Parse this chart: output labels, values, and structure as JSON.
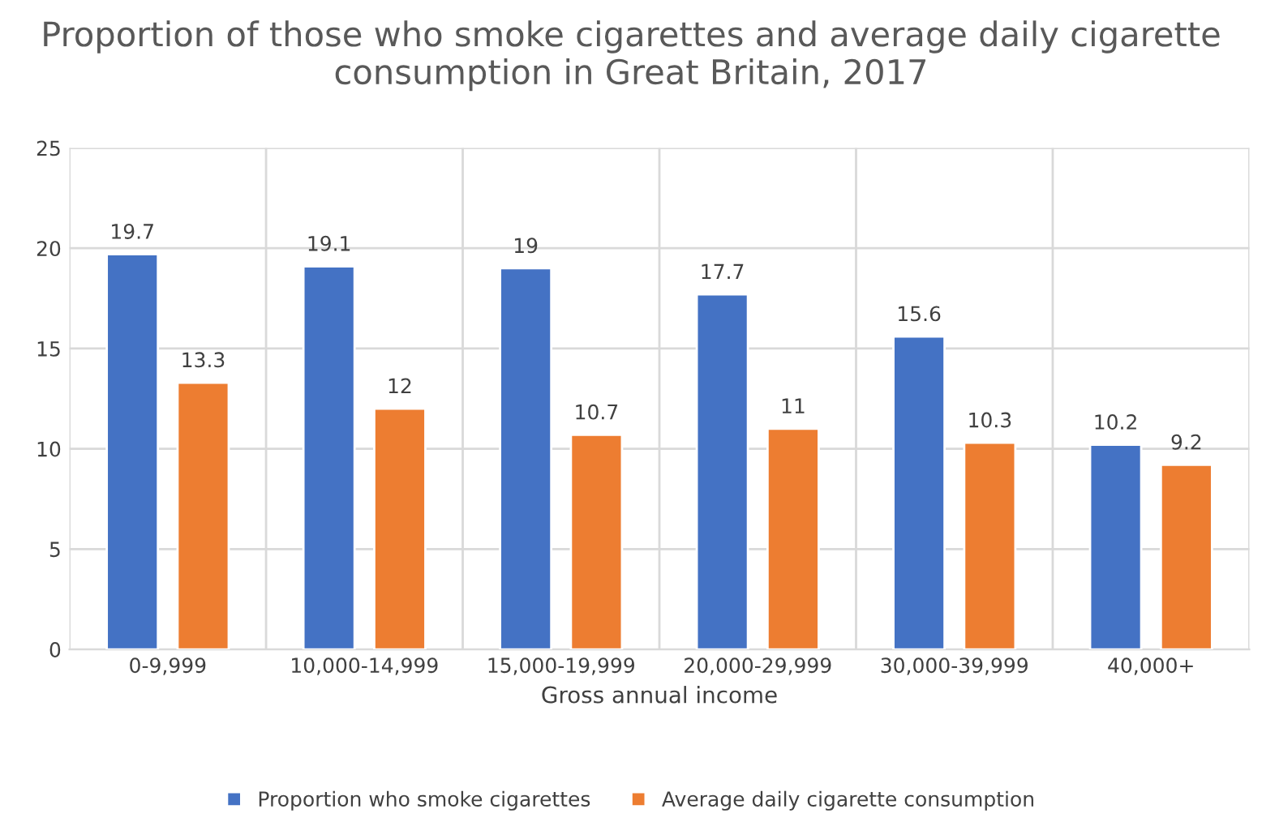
{
  "chart_data": {
    "type": "bar",
    "title": "Proportion of those who smoke cigarettes and average daily cigarette consumption in Great Britain, 2017",
    "xlabel": "Gross annual income",
    "categories": [
      "0-9,999",
      "10,000-14,999",
      "15,000-19,999",
      "20,000-29,999",
      "30,000-39,999",
      "40,000+"
    ],
    "series": [
      {
        "name": "Proportion who smoke cigarettes",
        "color": "#4472c4",
        "values": [
          19.7,
          19.1,
          19,
          17.7,
          15.6,
          10.2
        ]
      },
      {
        "name": "Average daily cigarette consumption",
        "color": "#ed7d31",
        "values": [
          13.3,
          12,
          10.7,
          11,
          10.3,
          9.2
        ]
      }
    ],
    "ylim": [
      0,
      25
    ],
    "yticks": [
      0,
      5,
      10,
      15,
      20,
      25
    ],
    "grid": true,
    "legend": "bottom",
    "data_labels": true
  }
}
